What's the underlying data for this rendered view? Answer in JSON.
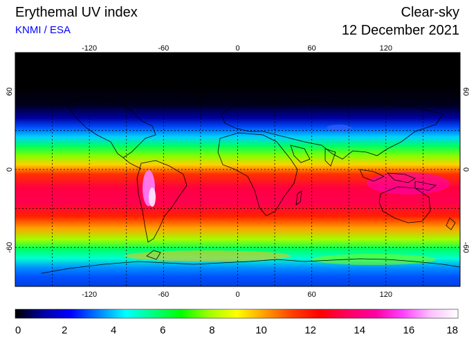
{
  "header": {
    "title": "Erythemal UV index",
    "source": "KNMI / ESA",
    "mode": "Clear-sky",
    "date": "12 December 2021"
  },
  "map": {
    "projection": "equirectangular",
    "lon_range": [
      -180,
      180
    ],
    "lat_range": [
      -90,
      90
    ],
    "lon_ticks": [
      -120,
      -60,
      0,
      60,
      120
    ],
    "lat_ticks": [
      60,
      0,
      -60
    ],
    "lon_tick_labels": [
      "-120",
      "-60",
      "0",
      "60",
      "120"
    ],
    "lat_tick_labels": [
      "60",
      "0",
      "-60"
    ],
    "graticule_step_deg": 30,
    "graticule_style": "dotted",
    "coastlines": true
  },
  "colorbar": {
    "min": 0,
    "max": 18,
    "tick_labels": [
      "0",
      "2",
      "4",
      "6",
      "8",
      "10",
      "12",
      "14",
      "16",
      "18"
    ],
    "colors": [
      "#000000",
      "#0000a0",
      "#0000ff",
      "#0080ff",
      "#00ffff",
      "#00ff80",
      "#00ff00",
      "#a0ff00",
      "#ffff00",
      "#ffa000",
      "#ff4000",
      "#ff0000",
      "#ff0060",
      "#ff00a0",
      "#ff40ff",
      "#ffc0ff",
      "#ffffff"
    ]
  }
}
